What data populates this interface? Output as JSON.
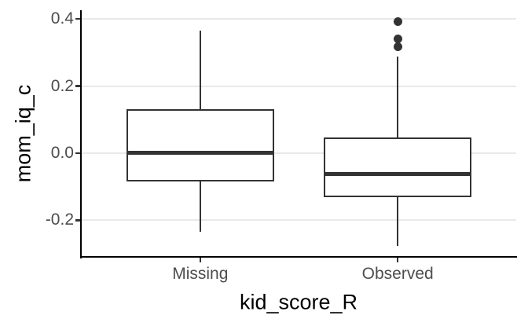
{
  "chart_data": {
    "type": "boxplot",
    "title": "",
    "xlabel": "kid_score_R",
    "ylabel": "mom_iq_c",
    "categories": [
      "Missing",
      "Observed"
    ],
    "y_ticks": [
      0.4,
      0.2,
      0.0,
      -0.2
    ],
    "y_tick_labels": [
      "0.4",
      "0.2",
      "0.0",
      "-0.2"
    ],
    "ylim": [
      -0.309,
      0.426
    ],
    "grid": "horizontal major gridlines only",
    "legend_position": "none",
    "series": [
      {
        "category": "Missing",
        "whisker_low": -0.234,
        "q1": -0.085,
        "median": 0.0,
        "q3": 0.131,
        "whisker_high": 0.366,
        "outliers": []
      },
      {
        "category": "Observed",
        "whisker_low": -0.276,
        "q1": -0.132,
        "median": -0.061,
        "q3": 0.046,
        "whisker_high": 0.289,
        "outliers": [
          0.318,
          0.341,
          0.392
        ]
      }
    ],
    "colors": {
      "background": "#ffffff",
      "box_border": "#333333",
      "box_fill": "#ffffff",
      "median": "#333333",
      "outlier": "#333333",
      "grid": "#e9e9e9",
      "axis_line": "#000000",
      "tick": "#333333",
      "tick_label": "#4d4d4d",
      "axis_title": "#000000"
    }
  }
}
